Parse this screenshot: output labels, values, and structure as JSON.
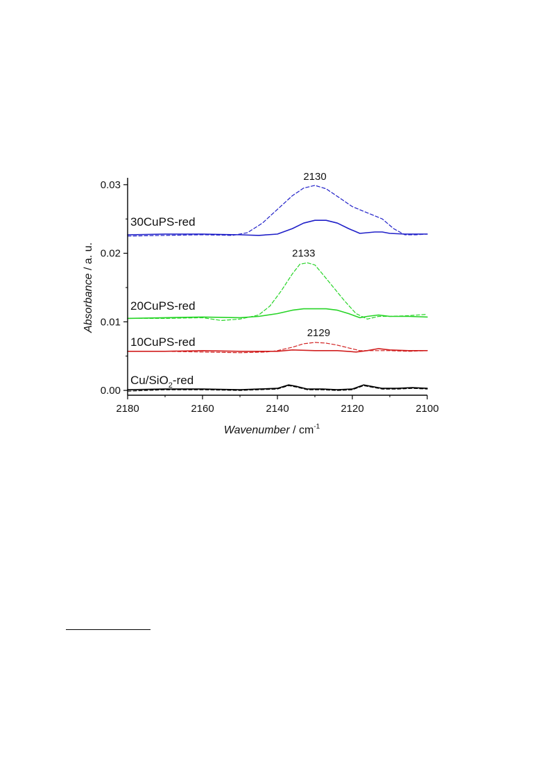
{
  "chart_data": {
    "type": "line",
    "xlabel_italic": "Wavenumber",
    "xlabel_unit": " / cm",
    "xlabel_unit_sup": "-1",
    "ylabel_italic": "Absorbance",
    "ylabel_unit": " / a. u.",
    "xlim": [
      2180,
      2100
    ],
    "ylim": [
      -0.0007,
      0.031
    ],
    "x_ticks": [
      2180,
      2160,
      2140,
      2120,
      2100
    ],
    "x_tick_labels": [
      "2180",
      "2160",
      "2140",
      "2120",
      "2100"
    ],
    "y_ticks": [
      0.0,
      0.01,
      0.02,
      0.03
    ],
    "y_tick_labels": [
      "0.00",
      "0.01",
      "0.02",
      "0.03"
    ],
    "series": [
      {
        "name": "30CuPS-red",
        "color": "#1f1fc8",
        "role": "solid",
        "x": [
          2180,
          2170,
          2160,
          2150,
          2145,
          2140,
          2136,
          2133,
          2130,
          2127,
          2124,
          2121,
          2118,
          2116,
          2114,
          2112,
          2110,
          2106,
          2103,
          2100
        ],
        "values": [
          0.0227,
          0.0228,
          0.0228,
          0.0227,
          0.0226,
          0.0228,
          0.0236,
          0.0244,
          0.0248,
          0.0248,
          0.0244,
          0.0236,
          0.0229,
          0.023,
          0.0231,
          0.0231,
          0.0229,
          0.0228,
          0.0228,
          0.0228
        ]
      },
      {
        "name": "30CuPS-red",
        "color": "#1f1fc8",
        "role": "dashed",
        "x": [
          2180,
          2170,
          2160,
          2152,
          2148,
          2144,
          2140,
          2136,
          2133,
          2130,
          2127,
          2124,
          2120,
          2116,
          2112,
          2109,
          2106,
          2103,
          2100
        ],
        "values": [
          0.0225,
          0.0226,
          0.0227,
          0.0226,
          0.023,
          0.0244,
          0.0264,
          0.0284,
          0.0295,
          0.0299,
          0.0294,
          0.0283,
          0.0268,
          0.0259,
          0.025,
          0.0236,
          0.0227,
          0.0227,
          0.0228
        ]
      },
      {
        "name": "20CuPS-red",
        "color": "#26d426",
        "role": "solid",
        "x": [
          2180,
          2170,
          2160,
          2150,
          2145,
          2140,
          2136,
          2133,
          2130,
          2127,
          2124,
          2121,
          2118,
          2116,
          2113,
          2110,
          2105,
          2100
        ],
        "values": [
          0.0105,
          0.0106,
          0.0107,
          0.0106,
          0.0108,
          0.0112,
          0.0117,
          0.0119,
          0.0119,
          0.0119,
          0.0117,
          0.0112,
          0.0106,
          0.0108,
          0.011,
          0.0108,
          0.0108,
          0.0107
        ]
      },
      {
        "name": "20CuPS-red",
        "color": "#26d426",
        "role": "dashed",
        "x": [
          2180,
          2170,
          2160,
          2155,
          2150,
          2145,
          2142,
          2139,
          2136,
          2134,
          2132,
          2130,
          2128,
          2125,
          2122,
          2119,
          2116,
          2113,
          2110,
          2105,
          2100
        ],
        "values": [
          0.0105,
          0.0105,
          0.0106,
          0.0102,
          0.0104,
          0.011,
          0.0123,
          0.0145,
          0.017,
          0.0184,
          0.0186,
          0.0183,
          0.017,
          0.015,
          0.013,
          0.0112,
          0.0104,
          0.0108,
          0.0108,
          0.0109,
          0.0111
        ]
      },
      {
        "name": "10CuPS-red",
        "color": "#d11f1f",
        "role": "solid",
        "x": [
          2180,
          2170,
          2160,
          2150,
          2140,
          2136,
          2130,
          2124,
          2119,
          2116,
          2113,
          2110,
          2105,
          2100
        ],
        "values": [
          0.0057,
          0.0057,
          0.0058,
          0.0057,
          0.0057,
          0.0059,
          0.0058,
          0.0058,
          0.0056,
          0.0058,
          0.0061,
          0.0059,
          0.0058,
          0.0058
        ]
      },
      {
        "name": "10CuPS-red",
        "color": "#d11f1f",
        "role": "dashed",
        "x": [
          2180,
          2170,
          2160,
          2150,
          2143,
          2140,
          2136,
          2133,
          2130,
          2127,
          2124,
          2121,
          2118,
          2114,
          2110,
          2105,
          2100
        ],
        "values": [
          0.0057,
          0.0057,
          0.0056,
          0.0055,
          0.0056,
          0.0058,
          0.0063,
          0.0068,
          0.007,
          0.0069,
          0.0066,
          0.0062,
          0.0058,
          0.0058,
          0.0058,
          0.0057,
          0.0058
        ]
      },
      {
        "name": "Cu/SiO2-red",
        "color": "#000000",
        "role": "solid",
        "x": [
          2180,
          2170,
          2160,
          2150,
          2145,
          2140,
          2137,
          2135,
          2132,
          2128,
          2124,
          2120,
          2117,
          2115,
          2112,
          2108,
          2104,
          2100
        ],
        "values": [
          0.0001,
          0.0002,
          0.0002,
          0.0001,
          0.0002,
          0.0003,
          0.0008,
          0.0006,
          0.0002,
          0.0002,
          0.0001,
          0.0002,
          0.0008,
          0.0006,
          0.0003,
          0.0003,
          0.0004,
          0.0003
        ]
      },
      {
        "name": "Cu/SiO2-red",
        "color": "#000000",
        "role": "dashed",
        "x": [
          2180,
          2170,
          2160,
          2150,
          2145,
          2140,
          2137,
          2135,
          2132,
          2128,
          2124,
          2120,
          2117,
          2115,
          2112,
          2108,
          2104,
          2100
        ],
        "values": [
          -0.0001,
          0.0001,
          0.0001,
          0.0,
          0.0001,
          0.0002,
          0.0007,
          0.0005,
          0.0001,
          0.0001,
          0.0,
          0.0001,
          0.0007,
          0.0005,
          0.0002,
          0.0002,
          0.0003,
          0.0002
        ]
      }
    ],
    "legend": [
      {
        "text": "30CuPS-red",
        "color": "#1f1fc8"
      },
      {
        "text": "20CuPS-red",
        "color": "#26d426"
      },
      {
        "text": "10CuPS-red",
        "color": "#d11f1f"
      },
      {
        "text": "Cu/SiO",
        "sub": "2",
        "suffix": "-red",
        "color": "#000000"
      }
    ],
    "annotations": [
      {
        "text": "2130",
        "x": 2130,
        "y": 0.0299
      },
      {
        "text": "2133",
        "x": 2133,
        "y": 0.0187
      },
      {
        "text": "2129",
        "x": 2129,
        "y": 0.0071
      }
    ]
  }
}
